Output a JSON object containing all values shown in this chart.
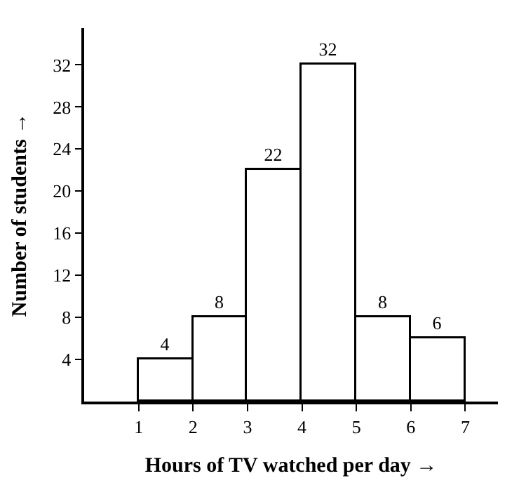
{
  "chart_data": {
    "type": "histogram",
    "xlabel": "Hours of TV watched per day →",
    "ylabel": "Number of students →",
    "bins": [
      1,
      2,
      3,
      4,
      5,
      6,
      7
    ],
    "values": [
      4,
      8,
      22,
      32,
      8,
      6
    ],
    "color": "#ffffff",
    "data_labels": true,
    "xlim": [
      0,
      7.6
    ],
    "ylim": [
      0,
      35.5
    ],
    "xticks": [
      1,
      2,
      3,
      4,
      5,
      6,
      7
    ],
    "yticks": [
      4,
      8,
      12,
      16,
      20,
      24,
      28,
      32
    ]
  }
}
